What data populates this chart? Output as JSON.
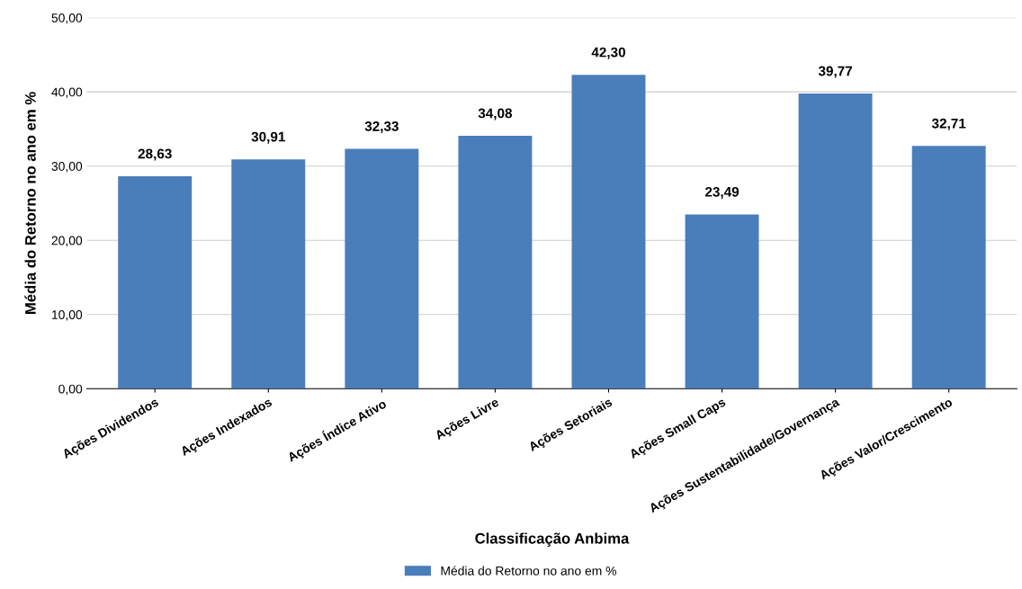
{
  "chart_data": {
    "type": "bar",
    "xlabel": "Classificação Anbima",
    "ylabel": "Média do Retorno no ano em %",
    "categories": [
      "Ações Dividendos",
      "Ações Indexados",
      "Ações Índice Ativo",
      "Ações Livre",
      "Ações Setoriais",
      "Ações Small Caps",
      "Ações Sustentabilidade/Governança",
      "Ações Valor/Crescimento"
    ],
    "series": [
      {
        "name": "Média do Retorno no ano em %",
        "color": "#4a7ebb",
        "values": [
          28.63,
          30.91,
          32.33,
          34.08,
          42.3,
          23.49,
          39.77,
          32.71
        ],
        "value_labels": [
          "28,63",
          "30,91",
          "32,33",
          "34,08",
          "42,30",
          "23,49",
          "39,77",
          "32,71"
        ]
      }
    ],
    "ylim": [
      0,
      50
    ],
    "yticks": [
      {
        "value": 0,
        "label": "0,00"
      },
      {
        "value": 10,
        "label": "10,00"
      },
      {
        "value": 20,
        "label": "20,00"
      },
      {
        "value": 30,
        "label": "30,00"
      },
      {
        "value": 40,
        "label": "40,00"
      },
      {
        "value": 50,
        "label": "50,00"
      }
    ],
    "grid": "y",
    "legend": "bottom"
  }
}
